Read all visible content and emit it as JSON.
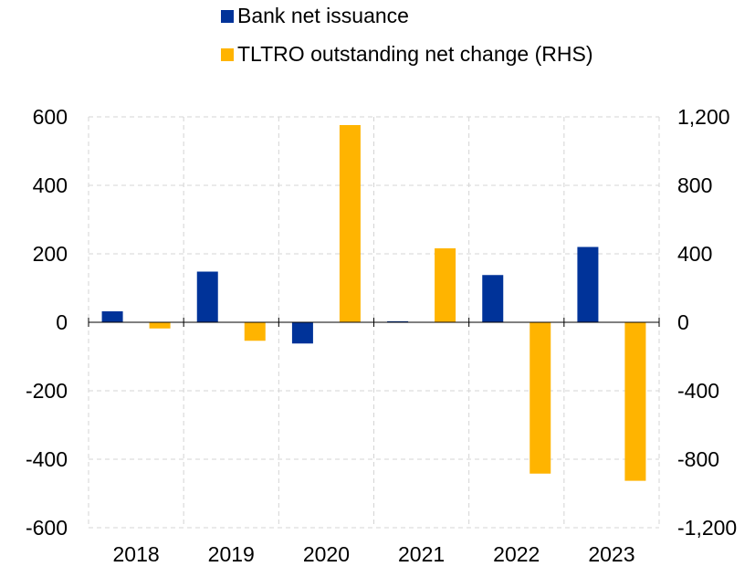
{
  "chart_data": {
    "type": "bar",
    "categories": [
      "2018",
      "2019",
      "2020",
      "2021",
      "2022",
      "2023"
    ],
    "series": [
      {
        "name": "Bank net issuance",
        "axis": "left",
        "color": "#003399",
        "values": [
          32,
          148,
          -62,
          3,
          138,
          220
        ]
      },
      {
        "name": "TLTRO outstanding net change (RHS)",
        "axis": "right",
        "color": "#FFB400",
        "values": [
          -36,
          -108,
          1152,
          432,
          -884,
          -926
        ]
      }
    ],
    "left_axis": {
      "ylim": [
        -600,
        600
      ],
      "ticks": [
        600,
        400,
        200,
        0,
        -200,
        -400,
        -600
      ],
      "tick_labels": [
        "600",
        "400",
        "200",
        "0",
        "-200",
        "-400",
        "-600"
      ]
    },
    "right_axis": {
      "ylim": [
        -1200,
        1200
      ],
      "ticks": [
        1200,
        800,
        400,
        0,
        -400,
        -800,
        -1200
      ],
      "tick_labels": [
        "1,200",
        "800",
        "400",
        "0",
        "-400",
        "-800",
        "-1,200"
      ]
    },
    "grid": true,
    "legend_position": "top"
  }
}
